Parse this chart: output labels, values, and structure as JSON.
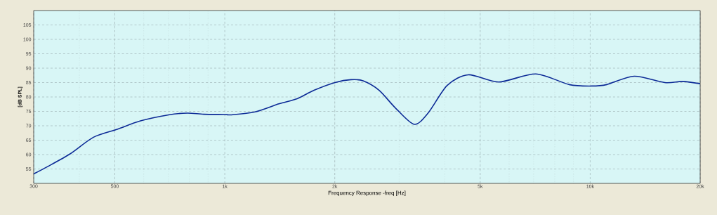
{
  "chart_data": {
    "type": "line",
    "xlabel": "Frequency Response -freq [Hz]",
    "ylabel": "[dB SPL]",
    "log": "x",
    "grid": true,
    "marker": "none",
    "line_style": "solid",
    "xlim": [
      300,
      20000
    ],
    "ylim": [
      50,
      110
    ],
    "xticks": [
      300,
      500,
      {
        "value": 1000,
        "label": "1k"
      },
      {
        "value": 2000,
        "label": "2k"
      },
      {
        "value": 5000,
        "label": "5k"
      },
      {
        "value": 10000,
        "label": "10k"
      },
      {
        "value": 20000,
        "label": "20k"
      }
    ],
    "yticks": [
      55,
      60,
      65,
      70,
      75,
      80,
      85,
      90,
      95,
      100,
      105
    ],
    "series": [
      {
        "color": "#0c2a96",
        "x": [
          300,
          326,
          378,
          437,
          508,
          588,
          702,
          790,
          876,
          1000,
          1045,
          1210,
          1406,
          1578,
          1754,
          2003,
          2216,
          2391,
          2646,
          2930,
          3300,
          3610,
          4060,
          4640,
          5620,
          7100,
          8760,
          10100,
          11100,
          13200,
          16000,
          17900,
          20000
        ],
        "values": [
          53.3,
          55.7,
          60.3,
          66.0,
          68.8,
          71.7,
          73.8,
          74.4,
          74.0,
          73.9,
          73.8,
          74.8,
          77.6,
          79.4,
          82.3,
          85.0,
          86.0,
          85.6,
          82.3,
          76.2,
          70.5,
          74.6,
          84.0,
          87.7,
          85.2,
          88.0,
          84.3,
          83.8,
          84.3,
          87.2,
          85.0,
          85.4,
          84.6
        ]
      }
    ]
  }
}
